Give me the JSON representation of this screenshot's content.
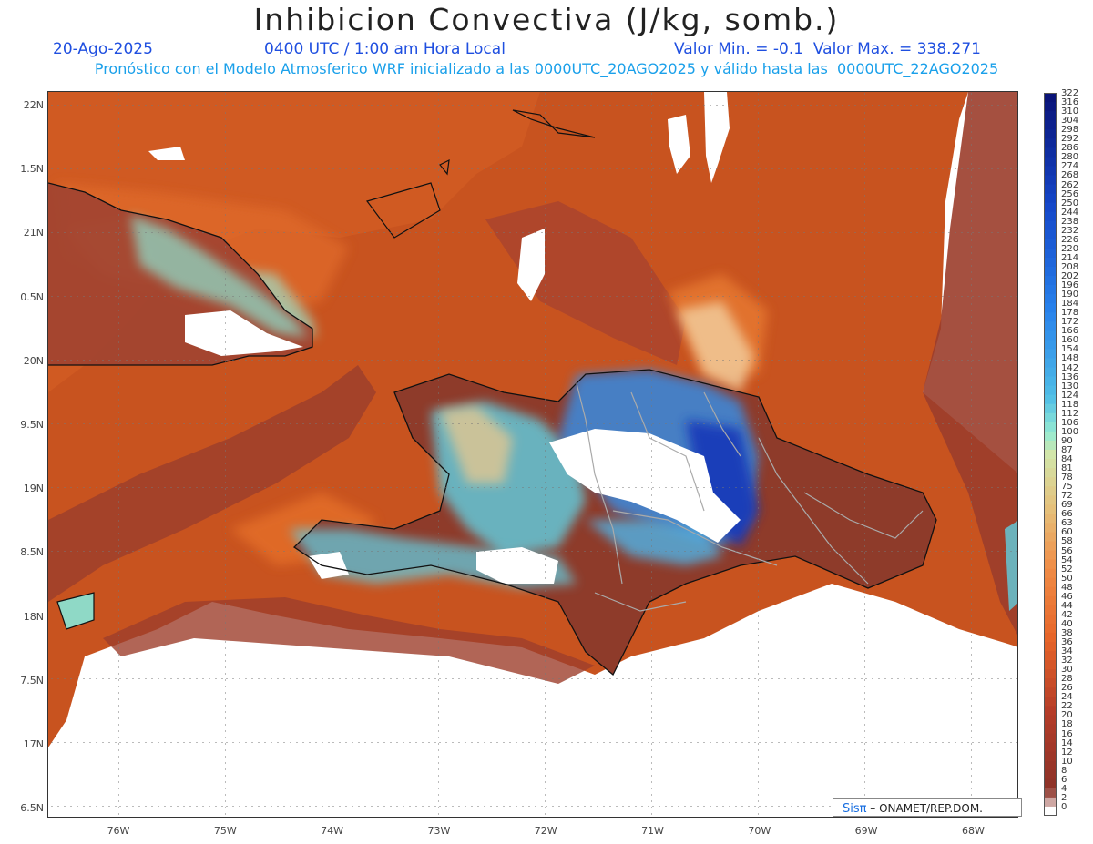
{
  "header": {
    "title": "Inhibicion Convectiva (J/kg, somb.)",
    "date": "20-Ago-2025",
    "time": "0400 UTC / 1:00 am Hora Local",
    "minmax": "Valor Min. = -0.1  Valor Max. = 338.271",
    "model_line": "Pronóstico con el Modelo Atmosferico WRF inicializado a las 0000UTC_20AGO2025 y válido hasta las  0000UTC_22AGO2025"
  },
  "axes": {
    "lat_labels": [
      "22N",
      "1.5N",
      "21N",
      "0.5N",
      "20N",
      "9.5N",
      "19N",
      "8.5N",
      "18N",
      "7.5N",
      "17N",
      "6.5N"
    ],
    "lon_labels": [
      "76W",
      "75W",
      "74W",
      "73W",
      "72W",
      "71W",
      "70W",
      "69W",
      "68W"
    ]
  },
  "legend": {
    "labels": [
      "322",
      "316",
      "310",
      "304",
      "298",
      "292",
      "286",
      "280",
      "274",
      "268",
      "262",
      "256",
      "250",
      "244",
      "238",
      "232",
      "226",
      "220",
      "214",
      "208",
      "202",
      "196",
      "190",
      "184",
      "178",
      "172",
      "166",
      "160",
      "154",
      "148",
      "142",
      "136",
      "130",
      "124",
      "118",
      "112",
      "106",
      "100",
      "90",
      "87",
      "84",
      "81",
      "78",
      "75",
      "72",
      "69",
      "66",
      "63",
      "60",
      "58",
      "56",
      "54",
      "52",
      "50",
      "48",
      "46",
      "44",
      "42",
      "40",
      "38",
      "36",
      "34",
      "32",
      "30",
      "28",
      "26",
      "24",
      "22",
      "20",
      "18",
      "16",
      "14",
      "12",
      "10",
      "8",
      "6",
      "4",
      "2",
      "0"
    ]
  },
  "credit": {
    "sis": "Sisπ",
    "text": " – ONAMET/REP.DOM."
  },
  "colors": {
    "ocean": "#c8531f",
    "land": "#8e3b2a",
    "blue": "#1a5fd6",
    "cyan": "#5fd0e0",
    "white": "#ffffff"
  }
}
